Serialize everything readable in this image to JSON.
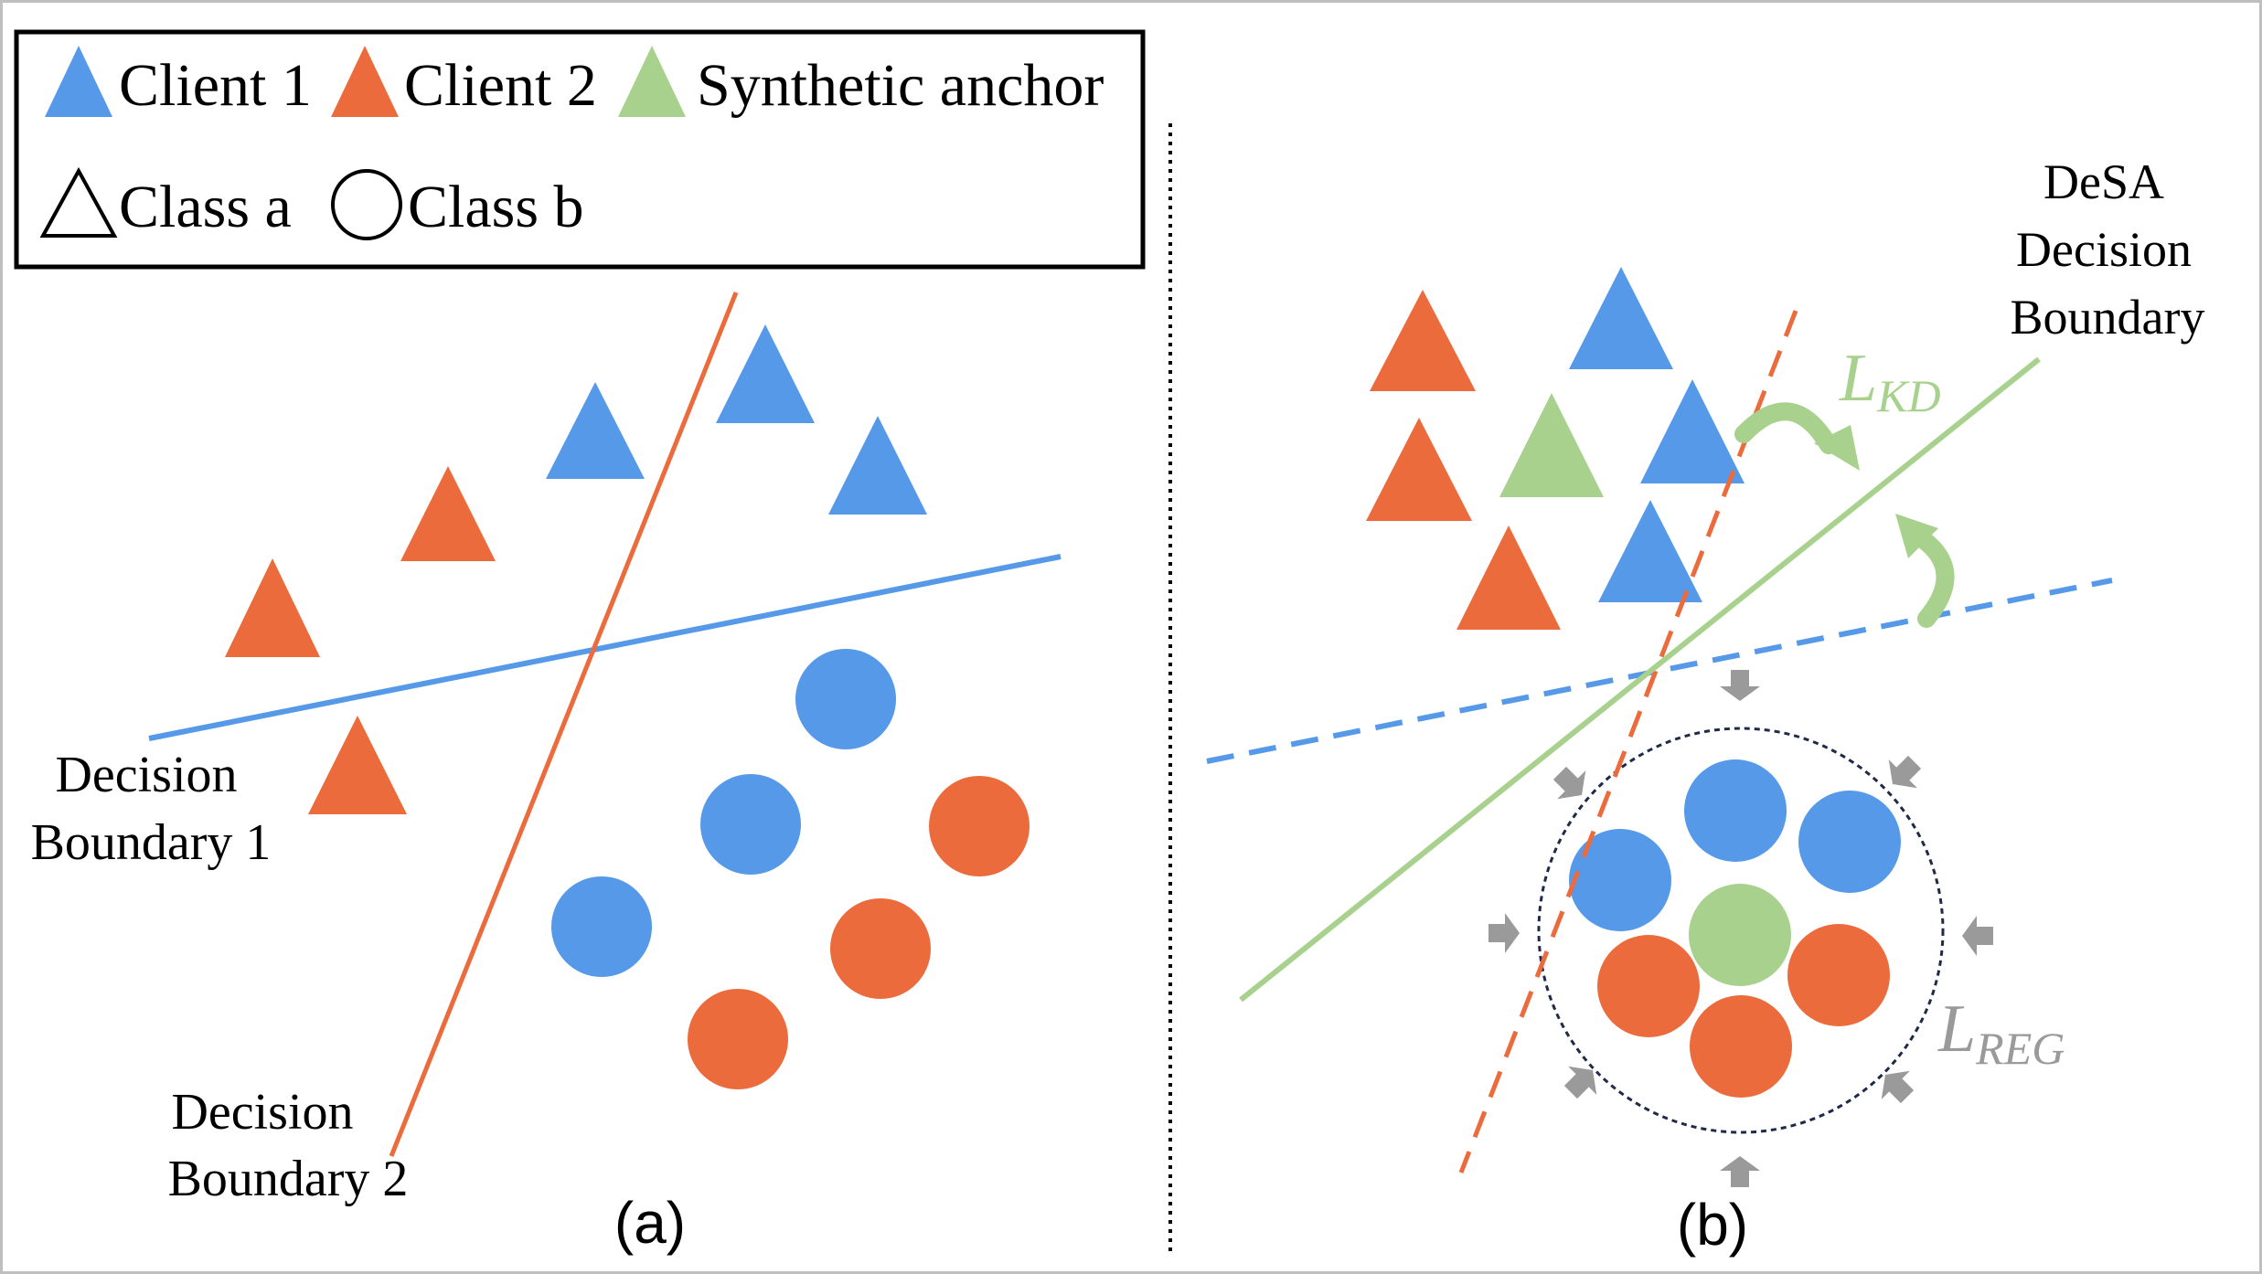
{
  "legend": {
    "client1": "Client 1",
    "client2": "Client 2",
    "anchor": "Synthetic anchor",
    "classA": "Class a",
    "classB": "Class b"
  },
  "panel_a": {
    "label": "(a)",
    "boundary1": [
      "Decision",
      "Boundary 1"
    ],
    "boundary2": [
      "Decision",
      "Boundary 2"
    ]
  },
  "panel_b": {
    "label": "(b)",
    "desa": [
      "DeSA",
      "Decision",
      "Boundary"
    ],
    "lkd": {
      "main": "L",
      "sub": "KD"
    },
    "lreg": {
      "main": "L",
      "sub": "REG"
    }
  },
  "colors": {
    "client1": "#5599e8",
    "client2": "#ec6b3c",
    "anchor": "#a9d18e",
    "arrow_gray": "#9a9a9a",
    "reg_circle": "#1f2a4a"
  }
}
